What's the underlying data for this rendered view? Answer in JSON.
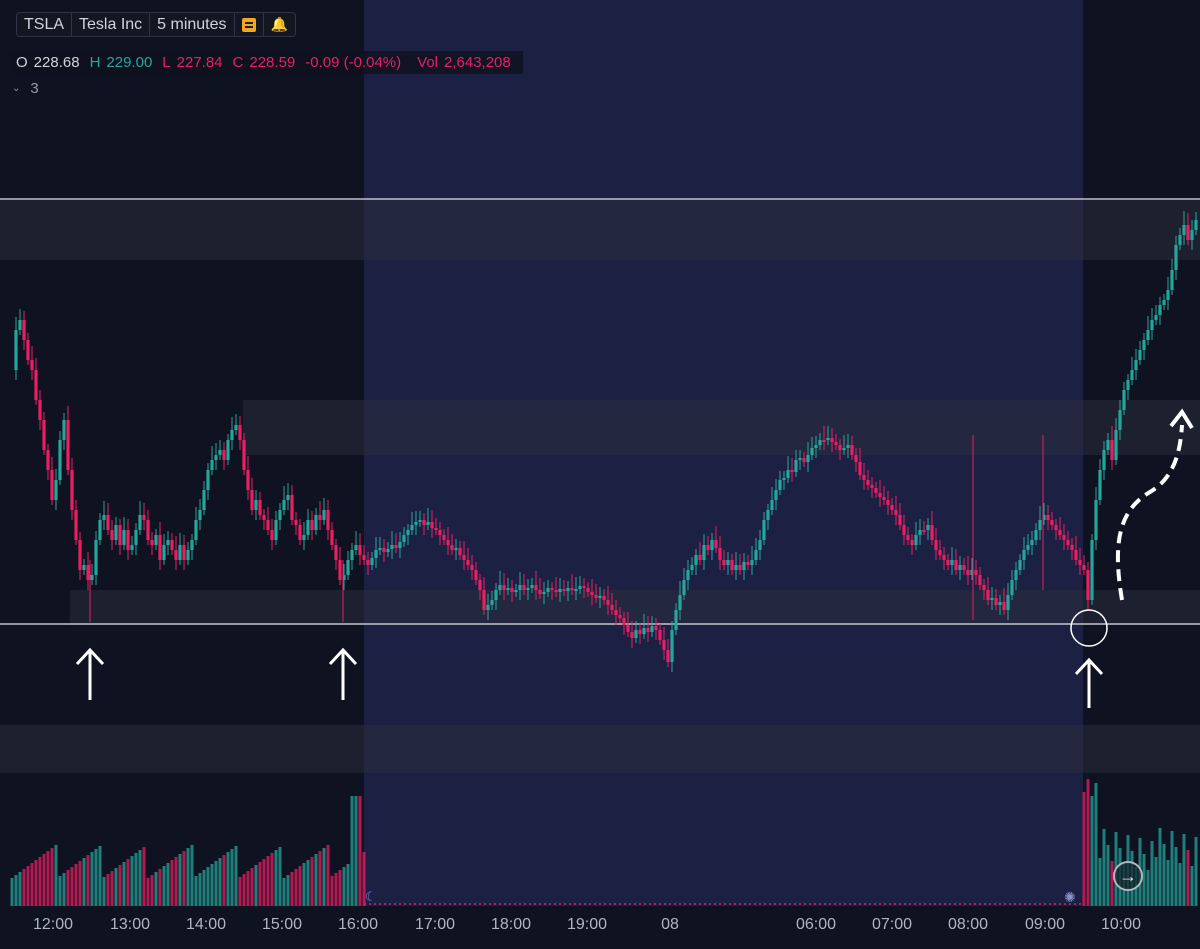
{
  "header": {
    "symbol": "TSLA",
    "name": "Tesla Inc",
    "interval": "5 minutes",
    "note_icon": "note-icon",
    "alert_icon": "bell-icon"
  },
  "ohlc": {
    "o_label": "O",
    "o_value": "228.68",
    "h_label": "H",
    "h_value": "229.00",
    "l_label": "L",
    "l_value": "227.84",
    "c_label": "C",
    "c_value": "228.59",
    "change": "-0.09 (-0.04%)",
    "vol_label": "Vol",
    "vol_value": "2,643,208"
  },
  "indicators": {
    "count": "3",
    "toggle_icon": "chevron-down-icon"
  },
  "colors": {
    "background": "#0f1220",
    "session_shade": "#1c2144",
    "up": "#26a69a",
    "down": "#e91e63",
    "zone": "#2a2e3d",
    "line": "#e0e3eb"
  },
  "time_axis": {
    "labels": [
      "12:00",
      "13:00",
      "14:00",
      "15:00",
      "16:00",
      "17:00",
      "18:00",
      "19:00",
      "08",
      "06:00",
      "07:00",
      "08:00",
      "09:00",
      "10:00"
    ]
  },
  "go_to_realtime_icon": "arrow-right-icon",
  "session_icons": {
    "extended": "moon-icon",
    "premarket": "sun-icon"
  },
  "chart_data": {
    "type": "candlestick",
    "symbol": "TSLA",
    "interval": "5 minutes",
    "price_levels": [
      "upper resistance line",
      "support line"
    ],
    "annotations": [
      "up-arrow at 12:30",
      "up-arrow at 15:50",
      "up-arrow at 09:30 with circle",
      "dashed curved up-arrow"
    ],
    "x": [
      "12:00",
      "13:00",
      "14:00",
      "15:00",
      "16:00",
      "17:00",
      "18:00",
      "19:00",
      "08",
      "06:00",
      "07:00",
      "08:00",
      "09:00",
      "10:00"
    ],
    "close_path": [
      [
        12,
        370
      ],
      [
        16,
        330
      ],
      [
        20,
        320
      ],
      [
        24,
        340
      ],
      [
        28,
        360
      ],
      [
        32,
        370
      ],
      [
        36,
        400
      ],
      [
        40,
        420
      ],
      [
        44,
        450
      ],
      [
        48,
        470
      ],
      [
        52,
        500
      ],
      [
        56,
        480
      ],
      [
        60,
        440
      ],
      [
        64,
        420
      ],
      [
        68,
        470
      ],
      [
        72,
        510
      ],
      [
        76,
        540
      ],
      [
        80,
        570
      ],
      [
        84,
        565
      ],
      [
        88,
        580
      ],
      [
        92,
        575
      ],
      [
        96,
        540
      ],
      [
        100,
        520
      ],
      [
        104,
        515
      ],
      [
        108,
        530
      ],
      [
        112,
        540
      ],
      [
        116,
        525
      ],
      [
        120,
        545
      ],
      [
        124,
        530
      ],
      [
        128,
        550
      ],
      [
        132,
        545
      ],
      [
        136,
        530
      ],
      [
        140,
        515
      ],
      [
        144,
        520
      ],
      [
        148,
        540
      ],
      [
        152,
        545
      ],
      [
        156,
        535
      ],
      [
        160,
        560
      ],
      [
        164,
        545
      ],
      [
        168,
        540
      ],
      [
        172,
        550
      ],
      [
        176,
        560
      ],
      [
        180,
        545
      ],
      [
        184,
        560
      ],
      [
        188,
        550
      ],
      [
        192,
        540
      ],
      [
        196,
        520
      ],
      [
        200,
        510
      ],
      [
        204,
        490
      ],
      [
        208,
        470
      ],
      [
        212,
        460
      ],
      [
        216,
        455
      ],
      [
        220,
        450
      ],
      [
        224,
        460
      ],
      [
        228,
        440
      ],
      [
        232,
        430
      ],
      [
        236,
        425
      ],
      [
        240,
        440
      ],
      [
        244,
        470
      ],
      [
        248,
        490
      ],
      [
        252,
        510
      ],
      [
        256,
        500
      ],
      [
        260,
        515
      ],
      [
        264,
        520
      ],
      [
        268,
        530
      ],
      [
        272,
        540
      ],
      [
        276,
        520
      ],
      [
        280,
        510
      ],
      [
        284,
        500
      ],
      [
        288,
        495
      ],
      [
        292,
        520
      ],
      [
        296,
        525
      ],
      [
        300,
        540
      ],
      [
        304,
        535
      ],
      [
        308,
        520
      ],
      [
        312,
        530
      ],
      [
        316,
        515
      ],
      [
        320,
        520
      ],
      [
        324,
        510
      ],
      [
        328,
        530
      ],
      [
        332,
        545
      ],
      [
        336,
        560
      ],
      [
        340,
        580
      ],
      [
        344,
        575
      ],
      [
        348,
        560
      ],
      [
        352,
        550
      ],
      [
        356,
        545
      ],
      [
        360,
        555
      ],
      [
        364,
        560
      ],
      [
        368,
        565
      ],
      [
        372,
        558
      ],
      [
        376,
        550
      ],
      [
        380,
        548
      ],
      [
        384,
        552
      ],
      [
        388,
        549
      ],
      [
        392,
        545
      ],
      [
        396,
        548
      ],
      [
        400,
        542
      ],
      [
        404,
        535
      ],
      [
        408,
        530
      ],
      [
        412,
        525
      ],
      [
        416,
        522
      ],
      [
        420,
        520
      ],
      [
        424,
        525
      ],
      [
        428,
        522
      ],
      [
        432,
        528
      ],
      [
        436,
        530
      ],
      [
        440,
        535
      ],
      [
        444,
        540
      ],
      [
        448,
        545
      ],
      [
        452,
        550
      ],
      [
        456,
        548
      ],
      [
        460,
        555
      ],
      [
        464,
        560
      ],
      [
        468,
        565
      ],
      [
        472,
        570
      ],
      [
        476,
        580
      ],
      [
        480,
        590
      ],
      [
        484,
        610
      ],
      [
        488,
        605
      ],
      [
        492,
        600
      ],
      [
        496,
        590
      ],
      [
        500,
        585
      ],
      [
        504,
        590
      ],
      [
        508,
        588
      ],
      [
        512,
        592
      ],
      [
        516,
        590
      ],
      [
        520,
        585
      ],
      [
        524,
        590
      ],
      [
        528,
        588
      ],
      [
        532,
        585
      ],
      [
        536,
        590
      ],
      [
        540,
        594
      ],
      [
        544,
        592
      ],
      [
        548,
        588
      ],
      [
        552,
        590
      ],
      [
        556,
        592
      ],
      [
        560,
        589
      ],
      [
        564,
        591
      ],
      [
        568,
        588
      ],
      [
        572,
        590
      ],
      [
        576,
        589
      ],
      [
        580,
        586
      ],
      [
        584,
        588
      ],
      [
        588,
        592
      ],
      [
        592,
        595
      ],
      [
        596,
        598
      ],
      [
        600,
        596
      ],
      [
        604,
        600
      ],
      [
        608,
        605
      ],
      [
        612,
        610
      ],
      [
        616,
        615
      ],
      [
        620,
        618
      ],
      [
        624,
        625
      ],
      [
        628,
        632
      ],
      [
        632,
        638
      ],
      [
        636,
        630
      ],
      [
        640,
        634
      ],
      [
        644,
        628
      ],
      [
        648,
        632
      ],
      [
        652,
        626
      ],
      [
        656,
        630
      ],
      [
        660,
        640
      ],
      [
        664,
        650
      ],
      [
        668,
        662
      ],
      [
        672,
        630
      ],
      [
        676,
        610
      ],
      [
        680,
        595
      ],
      [
        684,
        580
      ],
      [
        688,
        570
      ],
      [
        692,
        565
      ],
      [
        696,
        555
      ],
      [
        700,
        560
      ],
      [
        704,
        545
      ],
      [
        708,
        550
      ],
      [
        712,
        540
      ],
      [
        716,
        548
      ],
      [
        720,
        560
      ],
      [
        724,
        565
      ],
      [
        728,
        560
      ],
      [
        732,
        570
      ],
      [
        736,
        565
      ],
      [
        740,
        570
      ],
      [
        744,
        562
      ],
      [
        748,
        565
      ],
      [
        752,
        560
      ],
      [
        756,
        550
      ],
      [
        760,
        540
      ],
      [
        764,
        520
      ],
      [
        768,
        510
      ],
      [
        772,
        500
      ],
      [
        776,
        490
      ],
      [
        780,
        480
      ],
      [
        784,
        478
      ],
      [
        788,
        470
      ],
      [
        792,
        472
      ],
      [
        796,
        460
      ],
      [
        800,
        458
      ],
      [
        804,
        462
      ],
      [
        808,
        455
      ],
      [
        812,
        448
      ],
      [
        816,
        445
      ],
      [
        820,
        440
      ],
      [
        824,
        440
      ],
      [
        828,
        438
      ],
      [
        832,
        442
      ],
      [
        836,
        445
      ],
      [
        840,
        450
      ],
      [
        844,
        448
      ],
      [
        848,
        445
      ],
      [
        852,
        455
      ],
      [
        856,
        462
      ],
      [
        860,
        475
      ],
      [
        864,
        480
      ],
      [
        868,
        485
      ],
      [
        872,
        488
      ],
      [
        876,
        493
      ],
      [
        880,
        497
      ],
      [
        884,
        500
      ],
      [
        888,
        505
      ],
      [
        892,
        510
      ],
      [
        896,
        515
      ],
      [
        900,
        525
      ],
      [
        904,
        535
      ],
      [
        908,
        540
      ],
      [
        912,
        545
      ],
      [
        916,
        535
      ],
      [
        920,
        530
      ],
      [
        924,
        530
      ],
      [
        928,
        525
      ],
      [
        932,
        540
      ],
      [
        936,
        550
      ],
      [
        940,
        555
      ],
      [
        944,
        560
      ],
      [
        948,
        565
      ],
      [
        952,
        560
      ],
      [
        956,
        570
      ],
      [
        960,
        565
      ],
      [
        964,
        570
      ],
      [
        968,
        575
      ],
      [
        972,
        570
      ],
      [
        976,
        575
      ],
      [
        980,
        585
      ],
      [
        984,
        590
      ],
      [
        988,
        600
      ],
      [
        992,
        598
      ],
      [
        996,
        605
      ],
      [
        1000,
        602
      ],
      [
        1004,
        610
      ],
      [
        1008,
        595
      ],
      [
        1012,
        580
      ],
      [
        1016,
        570
      ],
      [
        1020,
        560
      ],
      [
        1024,
        550
      ],
      [
        1028,
        545
      ],
      [
        1032,
        540
      ],
      [
        1036,
        530
      ],
      [
        1040,
        520
      ],
      [
        1044,
        515
      ],
      [
        1048,
        520
      ],
      [
        1052,
        525
      ],
      [
        1056,
        530
      ],
      [
        1060,
        535
      ],
      [
        1064,
        540
      ],
      [
        1068,
        545
      ],
      [
        1072,
        550
      ],
      [
        1076,
        560
      ],
      [
        1080,
        565
      ],
      [
        1084,
        570
      ],
      [
        1088,
        600
      ],
      [
        1092,
        540
      ],
      [
        1096,
        500
      ],
      [
        1100,
        470
      ],
      [
        1104,
        450
      ],
      [
        1108,
        440
      ],
      [
        1112,
        460
      ],
      [
        1116,
        430
      ],
      [
        1120,
        410
      ],
      [
        1124,
        390
      ],
      [
        1128,
        380
      ],
      [
        1132,
        370
      ],
      [
        1136,
        360
      ],
      [
        1140,
        350
      ],
      [
        1144,
        340
      ],
      [
        1148,
        330
      ],
      [
        1152,
        320
      ],
      [
        1156,
        315
      ],
      [
        1160,
        305
      ],
      [
        1164,
        300
      ],
      [
        1168,
        290
      ],
      [
        1172,
        270
      ],
      [
        1176,
        245
      ],
      [
        1180,
        235
      ],
      [
        1184,
        225
      ],
      [
        1188,
        240
      ],
      [
        1192,
        230
      ],
      [
        1196,
        220
      ]
    ]
  }
}
